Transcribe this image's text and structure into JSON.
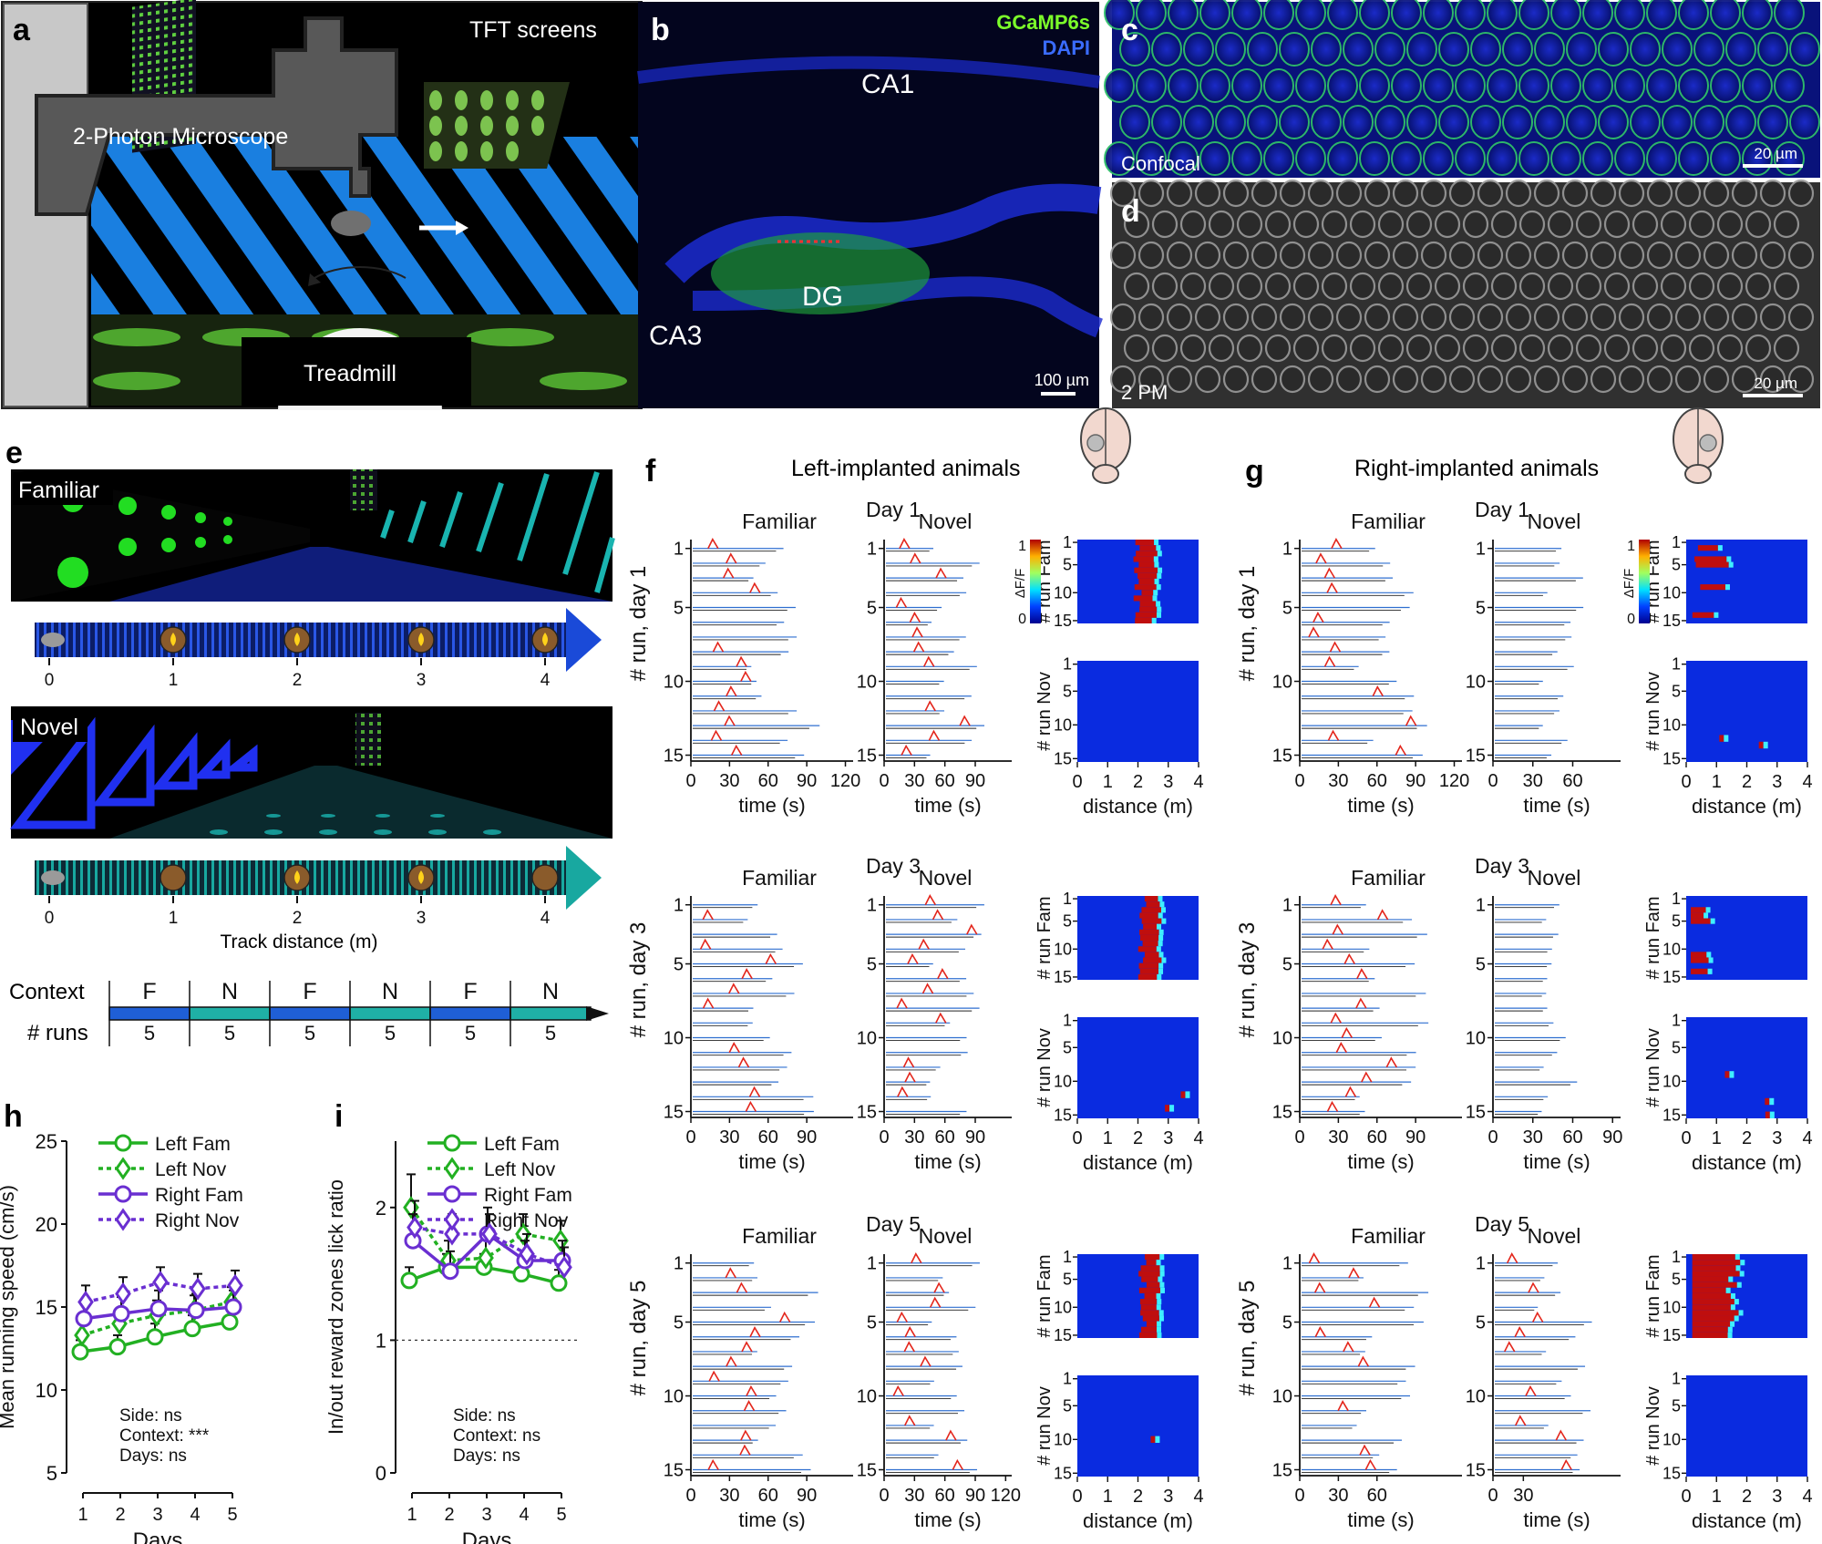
{
  "panels": {
    "a": {
      "letter": "a",
      "tft_label": "TFT screens",
      "microscope_label": "2-Photon Microscope",
      "treadmill_label": "Treadmill"
    },
    "b": {
      "letter": "b",
      "stain1": "GCaMP6s",
      "stain2": "DAPI",
      "ca1": "CA1",
      "ca3": "CA3",
      "dg": "DG",
      "scale": "100 µm"
    },
    "c": {
      "letter": "c",
      "label": "Confocal",
      "scale": "20 µm"
    },
    "d": {
      "letter": "d",
      "label": "2 PM",
      "scale": "20 µm"
    },
    "e": {
      "letter": "e",
      "familiar": "Familiar",
      "novel": "Novel",
      "ticks": [
        "0",
        "1",
        "2",
        "3",
        "4"
      ],
      "track_label": "Track distance (m)",
      "context_label": "Context",
      "runs_label": "# runs",
      "contexts": [
        "F",
        "N",
        "F",
        "N",
        "F",
        "N"
      ],
      "runs": [
        "5",
        "5",
        "5",
        "5",
        "5",
        "5"
      ]
    },
    "f": {
      "letter": "f",
      "title": "Left-implanted animals",
      "familiar": "Familiar",
      "novel": "Novel",
      "days": [
        "Day 1",
        "Day 3",
        "Day 5"
      ],
      "ylabels": [
        "# run, day 1",
        "# run, day 3",
        "# run, day 5"
      ],
      "fam_xticks": [
        [
          "0",
          "30",
          "60",
          "90",
          "120"
        ],
        [
          "0",
          "30",
          "60",
          "90"
        ],
        [
          "0",
          "30",
          "60",
          "90"
        ]
      ],
      "nov_xticks": [
        [
          "0",
          "30",
          "60",
          "90"
        ],
        [
          "0",
          "30",
          "60",
          "90"
        ],
        [
          "0",
          "30",
          "60",
          "90",
          "120"
        ]
      ]
    },
    "g": {
      "letter": "g",
      "title": "Right-implanted animals",
      "familiar": "Familiar",
      "novel": "Novel",
      "days": [
        "Day 1",
        "Day 3",
        "Day 5"
      ],
      "ylabels": [
        "# run, day 1",
        "# run, day 3",
        "# run, day 5"
      ],
      "fam_xticks": [
        [
          "0",
          "30",
          "60",
          "90",
          "120"
        ],
        [
          "0",
          "30",
          "60",
          "90"
        ],
        [
          "0",
          "30",
          "60"
        ]
      ],
      "nov_xticks": [
        [
          "0",
          "30",
          "60"
        ],
        [
          "0",
          "30",
          "60",
          "90"
        ],
        [
          "0",
          "30"
        ]
      ]
    },
    "common": {
      "trace_yticks": [
        "1",
        "5",
        "10",
        "15"
      ],
      "time_label": "time (s)",
      "distance_label": "distance (m)",
      "dist_ticks": [
        "0",
        "1",
        "2",
        "3",
        "4"
      ],
      "heat_yticks": [
        "1",
        "5",
        "10",
        "15"
      ],
      "fam_heat_label": "# run Fam",
      "nov_heat_label": "# run Nov",
      "colorbar_top": "1",
      "colorbar_bottom": "0",
      "colorbar_label": "ΔF/F"
    },
    "h": {
      "letter": "h",
      "stats": [
        "Side:  ns",
        "Context: ***",
        "Days:  ns"
      ]
    },
    "i": {
      "letter": "i",
      "stats": [
        "Side:  ns",
        "Context:  ns",
        "Days:  ns"
      ]
    }
  },
  "colors": {
    "left": "#22b022",
    "right": "#6a2fd1",
    "heat_bg": "#0a2be0",
    "familiar_bar": "#1f5fd6",
    "novel_bar": "#1fb0a6",
    "trace_blue": "#2f6fd0",
    "trace_red": "#e3261c"
  },
  "chart_data": [
    {
      "type": "line",
      "panel": "h",
      "xlabel": "Days",
      "ylabel": "Mean running speed (cm/s)",
      "x": [
        1,
        2,
        3,
        4,
        5
      ],
      "xticks": [
        "1",
        "2",
        "3",
        "4",
        "5"
      ],
      "ylim": [
        5,
        25
      ],
      "yticks": [
        "5",
        "10",
        "15",
        "20",
        "25"
      ],
      "series": [
        {
          "name": "Left Fam",
          "values": [
            12.3,
            12.6,
            13.2,
            13.7,
            14.1
          ],
          "err": [
            0.7,
            0.7,
            0.8,
            0.8,
            0.8
          ]
        },
        {
          "name": "Left Nov",
          "values": [
            13.3,
            14.0,
            14.5,
            14.8,
            15.3
          ],
          "err": [
            0.8,
            0.8,
            0.9,
            0.9,
            0.9
          ]
        },
        {
          "name": "Right Fam",
          "values": [
            14.3,
            14.6,
            14.9,
            14.8,
            15.0
          ],
          "err": [
            1.0,
            1.0,
            1.1,
            1.0,
            1.0
          ]
        },
        {
          "name": "Right Nov",
          "values": [
            15.3,
            15.8,
            16.5,
            16.1,
            16.3
          ],
          "err": [
            1.0,
            1.0,
            0.9,
            0.9,
            0.9
          ]
        }
      ]
    },
    {
      "type": "line",
      "panel": "i",
      "xlabel": "Days",
      "ylabel": "In/out reward zones lick ratio",
      "x": [
        1,
        2,
        3,
        4,
        5
      ],
      "xticks": [
        "1",
        "2",
        "3",
        "4",
        "5"
      ],
      "ylim": [
        0,
        2.5
      ],
      "yticks": [
        "0",
        "1",
        "2"
      ],
      "reference_line": 1,
      "series": [
        {
          "name": "Left Fam",
          "values": [
            1.45,
            1.55,
            1.55,
            1.5,
            1.43
          ],
          "err": [
            0.1,
            0.1,
            0.1,
            0.1,
            0.1
          ]
        },
        {
          "name": "Left Nov",
          "values": [
            2.0,
            1.6,
            1.62,
            1.8,
            1.75
          ],
          "err": [
            0.25,
            0.15,
            0.15,
            0.15,
            0.15
          ]
        },
        {
          "name": "Right Fam",
          "values": [
            1.75,
            1.52,
            1.8,
            1.6,
            1.6
          ],
          "err": [
            0.2,
            0.15,
            0.2,
            0.15,
            0.15
          ]
        },
        {
          "name": "Right Nov",
          "values": [
            1.85,
            1.8,
            1.8,
            1.65,
            1.55
          ],
          "err": [
            0.2,
            0.15,
            0.15,
            0.15,
            0.15
          ]
        }
      ]
    }
  ]
}
